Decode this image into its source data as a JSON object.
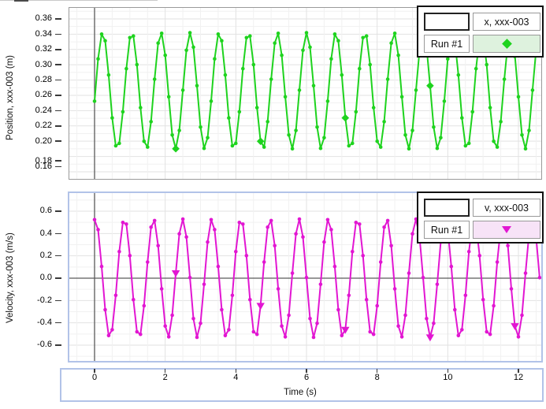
{
  "position_chart": {
    "y_axis_title": "Position, xxx-003 (m)",
    "y_tick_labels": [
      "0.36",
      "0.34",
      "0.32",
      "0.30",
      "0.28",
      "0.26",
      "0.24",
      "0.22",
      "0.20",
      "0.18",
      "0.16"
    ],
    "series_color": "#1ed31e",
    "legend": {
      "column_header": "x, xxx-003",
      "run_label": "Run #1",
      "marker": "diamond",
      "marker_color": "#1ed31e",
      "swatch_color": "#def2de"
    }
  },
  "velocity_chart": {
    "y_axis_title": "Velocity, xxx-003 (m/s)",
    "y_tick_labels": [
      "0.6",
      "0.4",
      "0.2",
      "0.0",
      "-0.2",
      "-0.4",
      "-0.6"
    ],
    "series_color": "#e216d2",
    "legend": {
      "column_header": "v, xxx-003",
      "run_label": "Run #1",
      "marker": "triangle-down",
      "marker_color": "#e216d2",
      "swatch_color": "#f7e3f7"
    }
  },
  "time_axis": {
    "title": "Time (s)",
    "tick_labels": [
      "0",
      "2",
      "4",
      "6",
      "8",
      "10",
      "12"
    ]
  },
  "chart_data": [
    {
      "type": "line",
      "title": "",
      "xlabel": "Time (s)",
      "ylabel": "Position, xxx-003 (m)",
      "xlim": [
        -0.71,
        12.65
      ],
      "ylim": [
        0.151,
        0.374
      ],
      "x_ticks": [
        0,
        2,
        4,
        6,
        8,
        10,
        12
      ],
      "y_ticks": [
        0.36,
        0.34,
        0.32,
        0.3,
        0.28,
        0.26,
        0.24,
        0.22,
        0.2,
        0.18,
        0.16
      ],
      "grid": "major+minor",
      "legend_position": "top-right",
      "legend_entries": [
        "x, xxx-003",
        "Run #1"
      ],
      "series": [
        {
          "name": "x, xxx-003 (Run #1)",
          "color": "#1ed31e",
          "model": "y(t) = mean + amplitude*cos(2*pi*(t-peak_time_s)/period_s)",
          "mean": 0.266,
          "amplitude": 0.076,
          "period_s": 0.825,
          "peak_time_s": 0.23,
          "t_start": 0,
          "t_end": 12.6,
          "dt": 0.1,
          "marker": "circle",
          "large_marker": "diamond",
          "large_marker_first_index": 23,
          "large_marker_every": 24
        }
      ]
    },
    {
      "type": "line",
      "title": "",
      "xlabel": "Time (s)",
      "ylabel": "Velocity, xxx-003 (m/s)",
      "xlim": [
        -0.71,
        12.65
      ],
      "ylim": [
        -0.74,
        0.76
      ],
      "x_ticks": [
        0,
        2,
        4,
        6,
        8,
        10,
        12
      ],
      "y_ticks": [
        0.6,
        0.4,
        0.2,
        0.0,
        -0.2,
        -0.4,
        -0.6
      ],
      "grid": "major+minor",
      "legend_position": "top-right",
      "legend_entries": [
        "v, xxx-003",
        "Run #1"
      ],
      "series": [
        {
          "name": "v, xxx-003 (Run #1)",
          "color": "#e216d2",
          "model": "y(t) = mean + amplitude*cos(2*pi*(t-peak_time_s)/period_s)",
          "mean": 0.0,
          "amplitude": 0.53,
          "period_s": 0.825,
          "peak_time_s": 0.02,
          "t_start": 0,
          "t_end": 12.6,
          "dt": 0.1,
          "marker": "circle",
          "large_marker": "triangle-down",
          "large_marker_first_index": 23,
          "large_marker_every": 24
        }
      ]
    }
  ]
}
